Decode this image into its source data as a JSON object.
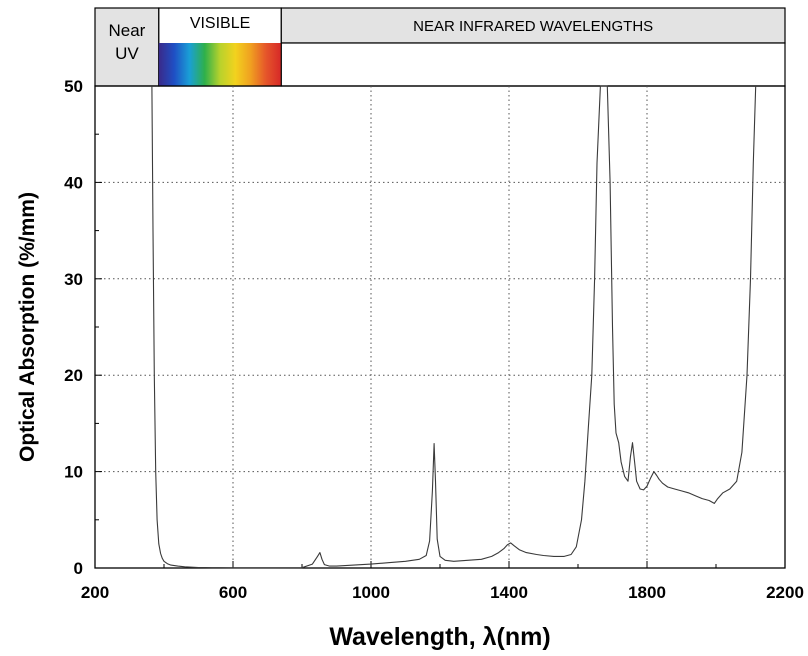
{
  "bands": {
    "near_uv_line1": "Near",
    "near_uv_line2": "UV",
    "visible": "VISIBLE",
    "near_infrared": "NEAR INFRARED WAVELENGTHS",
    "boundaries_nm": [
      385,
      740
    ]
  },
  "colors": {
    "band_header_bg": "#e3e3e3",
    "line": "#3a3a3a",
    "grid": "#555555",
    "spectrum": [
      "#3a2a8a",
      "#1f4fc4",
      "#1a9fd6",
      "#2fb04a",
      "#b8d22c",
      "#f2d21e",
      "#f0a020",
      "#e5552a",
      "#d62828"
    ]
  },
  "chart_data": {
    "type": "line",
    "xlabel": "Wavelength,  λ(nm)",
    "ylabel": "Optical Absorption (%/mm)",
    "xlim": [
      200,
      2200
    ],
    "ylim": [
      0,
      50
    ],
    "xticks": [
      200,
      600,
      1000,
      1400,
      1800,
      2200
    ],
    "yticks": [
      0,
      10,
      20,
      30,
      40,
      50
    ],
    "grid": true,
    "series": [
      {
        "x": [
          365,
          368,
          372,
          376,
          380,
          385,
          390,
          395,
          400,
          410,
          420,
          440,
          460,
          480,
          500,
          520,
          540,
          560,
          600,
          700,
          800,
          830,
          845,
          852,
          858,
          865,
          880,
          900,
          950,
          1000,
          1050,
          1100,
          1140,
          1160,
          1170,
          1178,
          1183,
          1187,
          1192,
          1200,
          1215,
          1240,
          1280,
          1320,
          1350,
          1370,
          1385,
          1395,
          1405,
          1415,
          1430,
          1450,
          1480,
          1500,
          1530,
          1560,
          1580,
          1595,
          1610,
          1620,
          1630,
          1640,
          1648,
          1655,
          1665,
          1675,
          1685,
          1693,
          1700,
          1705,
          1710,
          1718,
          1725,
          1735,
          1745,
          1752,
          1758,
          1764,
          1770,
          1780,
          1790,
          1800,
          1810,
          1820,
          1828,
          1835,
          1845,
          1860,
          1880,
          1900,
          1920,
          1940,
          1960,
          1980,
          1995,
          2005,
          2020,
          2040,
          2060,
          2075,
          2090,
          2100,
          2108,
          2115
        ],
        "y": [
          50,
          35,
          20,
          10,
          5,
          2.5,
          1.5,
          1.0,
          0.7,
          0.45,
          0.3,
          0.2,
          0.12,
          0.08,
          0.05,
          0.04,
          0.03,
          0.03,
          0.02,
          0.02,
          0.03,
          0.4,
          1.2,
          1.6,
          0.9,
          0.35,
          0.2,
          0.2,
          0.3,
          0.4,
          0.55,
          0.7,
          0.9,
          1.3,
          2.8,
          8.0,
          12.9,
          9.0,
          3.0,
          1.2,
          0.8,
          0.7,
          0.8,
          0.9,
          1.2,
          1.6,
          2.0,
          2.4,
          2.6,
          2.3,
          1.9,
          1.6,
          1.4,
          1.3,
          1.2,
          1.2,
          1.4,
          2.2,
          5.0,
          9.0,
          14.5,
          20.0,
          30.0,
          42.0,
          50,
          50,
          50,
          40,
          25,
          17,
          14,
          13.0,
          11.0,
          9.5,
          9.0,
          11.5,
          13.0,
          11.0,
          9.0,
          8.2,
          8.1,
          8.5,
          9.3,
          10.0,
          9.6,
          9.2,
          8.8,
          8.4,
          8.2,
          8.0,
          7.8,
          7.5,
          7.2,
          7.0,
          6.7,
          7.2,
          7.8,
          8.2,
          9.0,
          12.0,
          20.0,
          30.0,
          42.0,
          50
        ]
      }
    ]
  }
}
